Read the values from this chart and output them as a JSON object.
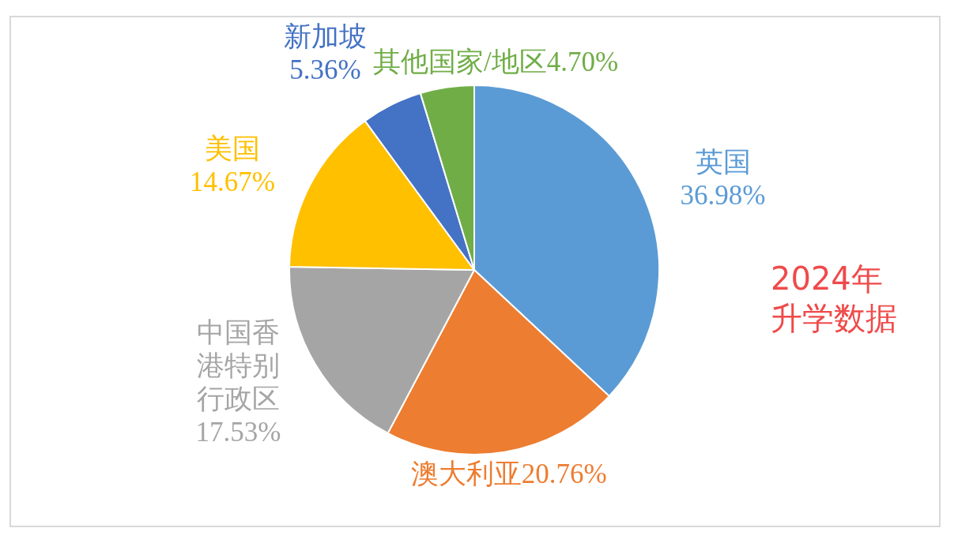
{
  "chart_data": {
    "type": "pie",
    "categories": [
      "英国",
      "澳大利亚",
      "中国香港特别行政区",
      "美国",
      "新加坡",
      "其他国家/地区"
    ],
    "values": [
      36.98,
      20.76,
      17.53,
      14.67,
      5.36,
      4.7
    ],
    "value_labels": [
      "36.98%",
      "20.76%",
      "17.53%",
      "14.67%",
      "5.36%",
      "4.70%"
    ],
    "colors": [
      "#5b9bd5",
      "#ed7d31",
      "#a5a5a5",
      "#ffc000",
      "#4472c4",
      "#70ad47"
    ],
    "annotations": [
      "2024年升学数据"
    ],
    "legend": false
  }
}
